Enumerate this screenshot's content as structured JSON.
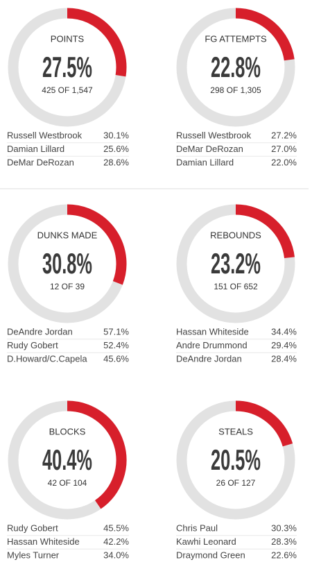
{
  "chart_data": [
    {
      "type": "donut",
      "title": "POINTS",
      "values": [
        27.5
      ],
      "value_labels": [
        "27.5%"
      ],
      "subtitle": "425 OF 1,547",
      "color": "#d71f2b",
      "track_color": "#e2e2e2",
      "range": [
        0,
        100
      ],
      "leaders": [
        [
          "Russell Westbrook",
          "30.1%"
        ],
        [
          "Damian Lillard",
          "25.6%"
        ],
        [
          "DeMar DeRozan",
          "28.6%"
        ]
      ]
    },
    {
      "type": "donut",
      "title": "FG ATTEMPTS",
      "values": [
        22.8
      ],
      "value_labels": [
        "22.8%"
      ],
      "subtitle": "298 OF 1,305",
      "color": "#d71f2b",
      "track_color": "#e2e2e2",
      "range": [
        0,
        100
      ],
      "leaders": [
        [
          "Russell Westbrook",
          "27.2%"
        ],
        [
          "DeMar DeRozan",
          "27.0%"
        ],
        [
          "Damian Lillard",
          "22.0%"
        ]
      ]
    },
    {
      "type": "donut",
      "title": "DUNKS MADE",
      "values": [
        30.8
      ],
      "value_labels": [
        "30.8%"
      ],
      "subtitle": "12 OF 39",
      "color": "#d71f2b",
      "track_color": "#e2e2e2",
      "range": [
        0,
        100
      ],
      "leaders": [
        [
          "DeAndre Jordan",
          "57.1%"
        ],
        [
          "Rudy Gobert",
          "52.4%"
        ],
        [
          "D.Howard/C.Capela",
          "45.6%"
        ]
      ]
    },
    {
      "type": "donut",
      "title": "REBOUNDS",
      "values": [
        23.2
      ],
      "value_labels": [
        "23.2%"
      ],
      "subtitle": "151 OF 652",
      "color": "#d71f2b",
      "track_color": "#e2e2e2",
      "range": [
        0,
        100
      ],
      "leaders": [
        [
          "Hassan Whiteside",
          "34.4%"
        ],
        [
          "Andre Drummond",
          "29.4%"
        ],
        [
          "DeAndre Jordan",
          "28.4%"
        ]
      ]
    },
    {
      "type": "donut",
      "title": "BLOCKS",
      "values": [
        40.4
      ],
      "value_labels": [
        "40.4%"
      ],
      "subtitle": "42 OF 104",
      "color": "#d71f2b",
      "track_color": "#e2e2e2",
      "range": [
        0,
        100
      ],
      "leaders": [
        [
          "Rudy Gobert",
          "45.5%"
        ],
        [
          "Hassan Whiteside",
          "42.2%"
        ],
        [
          "Myles Turner",
          "34.0%"
        ]
      ]
    },
    {
      "type": "donut",
      "title": "STEALS",
      "values": [
        20.5
      ],
      "value_labels": [
        "20.5%"
      ],
      "subtitle": "26 OF 127",
      "color": "#d71f2b",
      "track_color": "#e2e2e2",
      "range": [
        0,
        100
      ],
      "leaders": [
        [
          "Chris Paul",
          "30.3%"
        ],
        [
          "Kawhi Leonard",
          "28.3%"
        ],
        [
          "Draymond Green",
          "22.6%"
        ]
      ]
    }
  ]
}
